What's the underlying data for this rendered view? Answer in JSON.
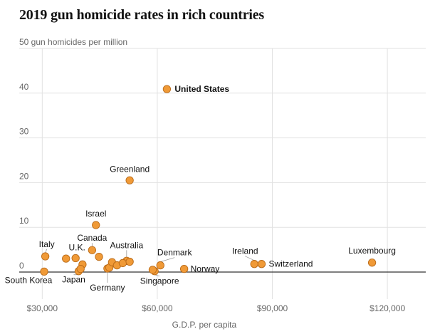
{
  "chart_data": {
    "type": "scatter",
    "title": "2019 gun homicide rates in rich countries",
    "ylabel": "gun homicides per million",
    "xlabel": "G.D.P. per capita",
    "xlim": [
      24000,
      130000
    ],
    "ylim": [
      0,
      50
    ],
    "grid": true,
    "x_ticks": [
      {
        "value": 30000,
        "label": "$30,000"
      },
      {
        "value": 60000,
        "label": "$60,000"
      },
      {
        "value": 90000,
        "label": "$90,000"
      },
      {
        "value": 120000,
        "label": "$120,000"
      }
    ],
    "y_ticks": [
      {
        "value": 0,
        "label": "0"
      },
      {
        "value": 10,
        "label": "10"
      },
      {
        "value": 20,
        "label": "20"
      },
      {
        "value": 30,
        "label": "30"
      },
      {
        "value": 40,
        "label": "40"
      },
      {
        "value": 50,
        "label": "50 gun homicides per million"
      }
    ],
    "points": [
      {
        "label": "United States",
        "x": 62500,
        "y": 40.9,
        "bold": true
      },
      {
        "label": "Greenland",
        "x": 52800,
        "y": 20.5
      },
      {
        "label": "Israel",
        "x": 44000,
        "y": 10.5
      },
      {
        "label": "Canada",
        "x": 43000,
        "y": 4.9
      },
      {
        "label": "Italy",
        "x": 30800,
        "y": 3.5
      },
      {
        "label": "U.K.",
        "x": 38700,
        "y": 3.1
      },
      {
        "label": "Australia",
        "x": 52000,
        "y": 2.5
      },
      {
        "label": "Denmark",
        "x": 60800,
        "y": 1.5
      },
      {
        "label": "Ireland",
        "x": 85300,
        "y": 1.8
      },
      {
        "label": "Switzerland",
        "x": 87200,
        "y": 1.8
      },
      {
        "label": "Luxembourg",
        "x": 116000,
        "y": 2.1
      },
      {
        "label": "Norway",
        "x": 67000,
        "y": 0.7
      },
      {
        "label": "South Korea",
        "x": 30500,
        "y": 0.1
      },
      {
        "label": "Japan",
        "x": 39500,
        "y": 0.2
      },
      {
        "label": "Germany",
        "x": 47000,
        "y": 0.8
      },
      {
        "label": "Singapore",
        "x": 59300,
        "y": 0.2
      },
      {
        "label": "",
        "x": 36200,
        "y": 3.0
      },
      {
        "label": "",
        "x": 44800,
        "y": 3.4
      },
      {
        "label": "",
        "x": 40500,
        "y": 1.7
      },
      {
        "label": "",
        "x": 40000,
        "y": 0.7
      },
      {
        "label": "",
        "x": 47500,
        "y": 1.0
      },
      {
        "label": "",
        "x": 48200,
        "y": 2.2
      },
      {
        "label": "",
        "x": 49500,
        "y": 1.5
      },
      {
        "label": "",
        "x": 51000,
        "y": 2.0
      },
      {
        "label": "",
        "x": 52800,
        "y": 2.3
      },
      {
        "label": "",
        "x": 58800,
        "y": 0.5
      }
    ]
  }
}
